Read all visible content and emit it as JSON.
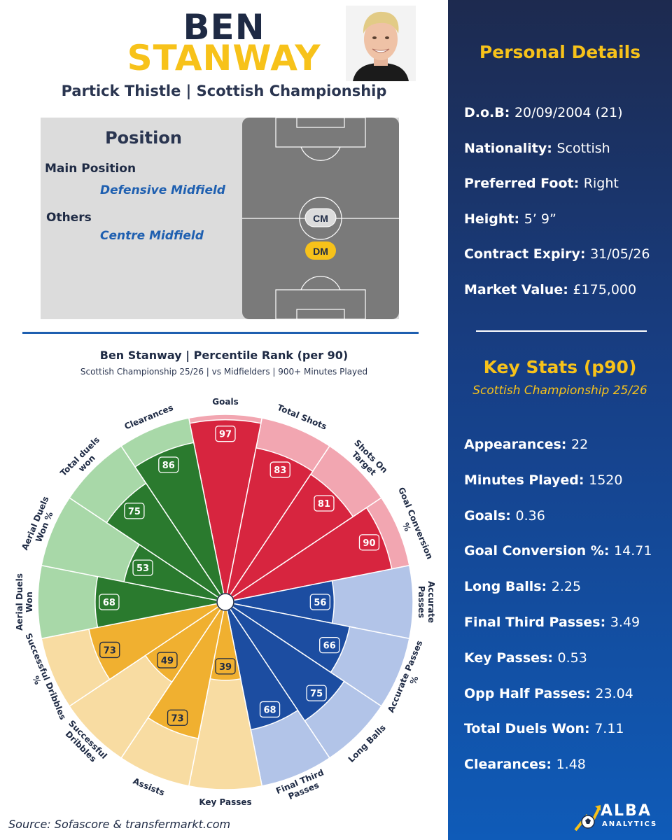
{
  "header": {
    "first_name": "BEN",
    "last_name": "STANWAY",
    "club_line": "Partick Thistle | Scottish Championship"
  },
  "position": {
    "title": "Position",
    "main_label": "Main Position",
    "main_value": "Defensive Midfield",
    "others_label": "Others",
    "others_value": "Centre Midfield",
    "pitch_markers": [
      "CM",
      "DM"
    ]
  },
  "personal": {
    "title": "Personal Details",
    "rows": [
      {
        "label": "D.o.B:",
        "value": "20/09/2004 (21)"
      },
      {
        "label": "Nationality:",
        "value": "Scottish"
      },
      {
        "label": "Preferred Foot:",
        "value": "Right"
      },
      {
        "label": "Height:",
        "value": "5’ 9”"
      },
      {
        "label": "Contract Expiry:",
        "value": "31/05/26"
      },
      {
        "label": "Market Value:",
        "value": "£175,000"
      }
    ]
  },
  "key_stats": {
    "title": "Key Stats (p90)",
    "subtitle": "Scottish Championship 25/26",
    "rows": [
      {
        "label": "Appearances:",
        "value": "22"
      },
      {
        "label": "Minutes Played:",
        "value": "1520"
      },
      {
        "label": "Goals:",
        "value": "0.36"
      },
      {
        "label": "Goal Conversion %:",
        "value": "14.71"
      },
      {
        "label": "Long Balls:",
        "value": "2.25"
      },
      {
        "label": "Final Third Passes:",
        "value": "3.49"
      },
      {
        "label": "Key Passes:",
        "value": "0.53"
      },
      {
        "label": "Opp Half Passes:",
        "value": "23.04"
      },
      {
        "label": "Total Duels Won:",
        "value": "7.11"
      },
      {
        "label": "Clearances:",
        "value": "1.48"
      }
    ]
  },
  "source": "Source: Sofascore & transfermarkt.com",
  "logo": {
    "line1": "ALBA",
    "line2": "ANALYTICS"
  },
  "colors": {
    "navy": "#1e2a44",
    "gold": "#f7c21a",
    "attack_dark": "#d7253f",
    "attack_light": "#f2a6b1",
    "passing_dark": "#1c4da1",
    "passing_light": "#b2c4e8",
    "creation_dark": "#f0b030",
    "creation_light": "#f8dca2",
    "defending_dark": "#2a7a2e",
    "defending_light": "#a8d8a8"
  },
  "chart_data": {
    "type": "radial-bar",
    "title": "Ben Stanway | Percentile Rank (per 90)",
    "subtitle": "Scottish Championship 25/26 | vs Midfielders | 900+ Minutes Played",
    "range": [
      0,
      100
    ],
    "categories": [
      "Goals",
      "Total Shots",
      "Shots On Target",
      "Goal Conversion %",
      "Accurate Passes",
      "Accurate Passes %",
      "Long Balls",
      "Final Third Passes",
      "Key Passes",
      "Assists",
      "Successful Dribbles",
      "Successful Dribbles %",
      "Aerial Duels Won",
      "Aerial Duels Won %",
      "Total duels won",
      "Clearances"
    ],
    "values": [
      97,
      83,
      81,
      90,
      56,
      66,
      75,
      68,
      39,
      73,
      49,
      73,
      68,
      53,
      75,
      86
    ],
    "groups": [
      "attack",
      "attack",
      "attack",
      "attack",
      "passing",
      "passing",
      "passing",
      "passing",
      "creation",
      "creation",
      "creation",
      "creation",
      "defending",
      "defending",
      "defending",
      "defending"
    ]
  }
}
